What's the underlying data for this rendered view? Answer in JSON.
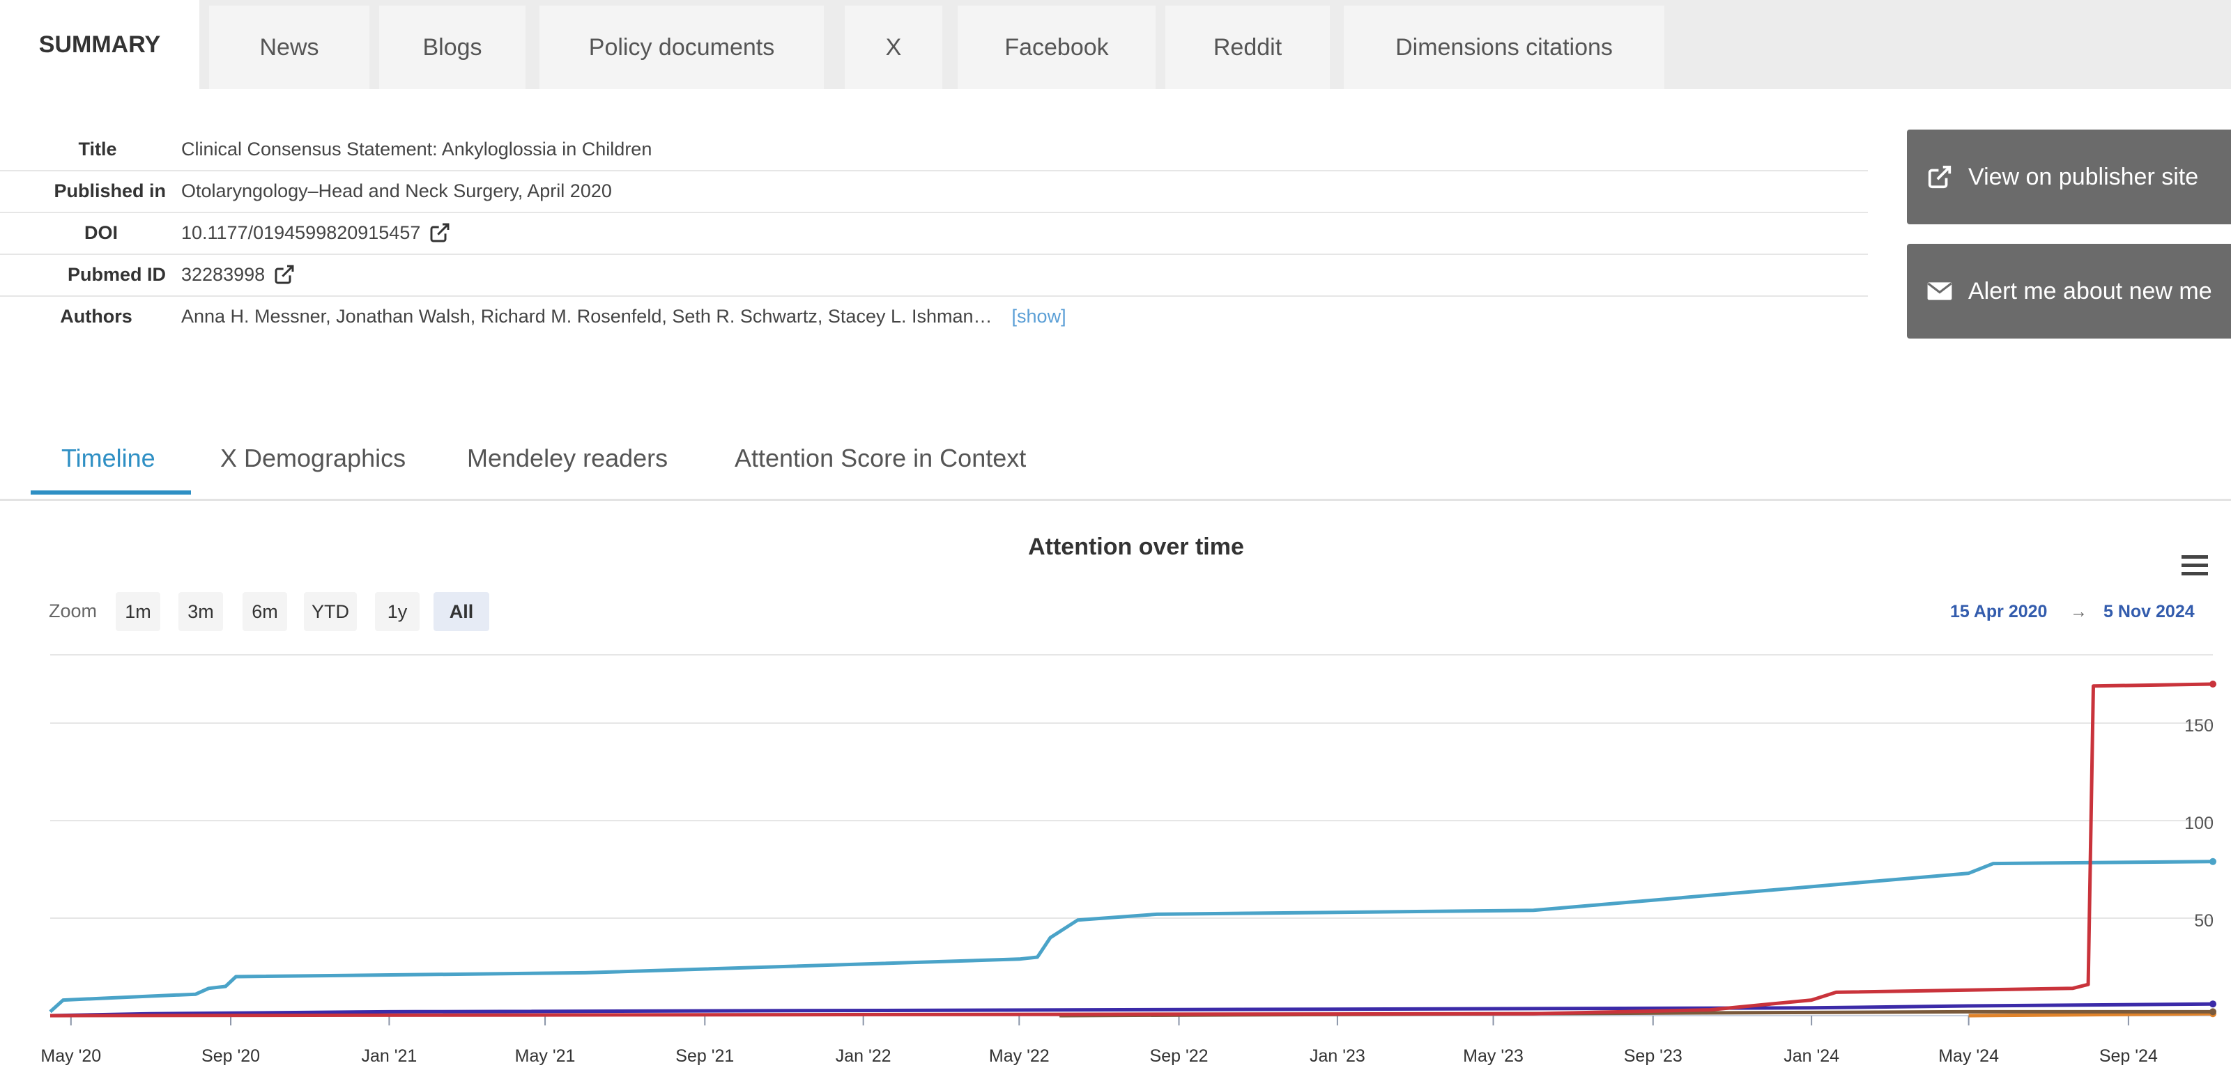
{
  "top_tabs": [
    {
      "label": "SUMMARY",
      "active": true
    },
    {
      "label": "News"
    },
    {
      "label": "Blogs"
    },
    {
      "label": "Policy documents"
    },
    {
      "label": "X"
    },
    {
      "label": "Facebook"
    },
    {
      "label": "Reddit"
    },
    {
      "label": "Dimensions citations"
    }
  ],
  "metadata": {
    "title_label": "Title",
    "title_value": "Clinical Consensus Statement: Ankyloglossia in Children",
    "published_label": "Published in",
    "published_value": "Otolaryngology–Head and Neck Surgery, April 2020",
    "doi_label": "DOI",
    "doi_value": "10.1177/0194599820915457",
    "pubmed_label": "Pubmed ID",
    "pubmed_value": "32283998",
    "authors_label": "Authors",
    "authors_value": "Anna H. Messner, Jonathan Walsh, Richard M. Rosenfeld, Seth R. Schwartz, Stacey L. Ishman…",
    "show_label": "[show]"
  },
  "buttons": {
    "publisher_label": "View on publisher site",
    "alert_label": "Alert me about new me"
  },
  "sub_tabs": [
    {
      "label": "Timeline",
      "active": true
    },
    {
      "label": "X Demographics"
    },
    {
      "label": "Mendeley readers"
    },
    {
      "label": "Attention Score in Context"
    }
  ],
  "chart": {
    "title": "Attention over time",
    "zoom_label": "Zoom",
    "zoom_buttons": [
      "1m",
      "3m",
      "6m",
      "YTD",
      "1y",
      "All"
    ],
    "zoom_active": "All",
    "range_from": "15 Apr 2020",
    "range_arrow": "→",
    "range_to": "5 Nov 2024",
    "accent_color": "#2e8fc4"
  },
  "chart_data": {
    "type": "line",
    "title": "Attention over time",
    "xlabel": "",
    "ylabel": "",
    "x_tick_labels": [
      "May '20",
      "Sep '20",
      "Jan '21",
      "May '21",
      "Sep '21",
      "Jan '22",
      "May '22",
      "Sep '22",
      "Jan '23",
      "May '23",
      "Sep '23",
      "Jan '24",
      "May '24",
      "Sep '24"
    ],
    "y_ticks": [
      50,
      100,
      150
    ],
    "ylim": [
      0,
      185
    ],
    "xlim": [
      "2020-04-15",
      "2024-11-05"
    ],
    "grid": true,
    "series": [
      {
        "color": "#c9333b",
        "points": [
          [
            "2020-04-15",
            0
          ],
          [
            "2023-06-01",
            1
          ],
          [
            "2023-10-15",
            3
          ],
          [
            "2024-01-01",
            8
          ],
          [
            "2024-01-20",
            12
          ],
          [
            "2024-07-20",
            14
          ],
          [
            "2024-08-01",
            16
          ],
          [
            "2024-08-05",
            169
          ],
          [
            "2024-11-05",
            170
          ]
        ]
      },
      {
        "color": "#4aa3c8",
        "points": [
          [
            "2020-04-15",
            2
          ],
          [
            "2020-04-25",
            8
          ],
          [
            "2020-07-01",
            10
          ],
          [
            "2020-08-05",
            11
          ],
          [
            "2020-08-15",
            14
          ],
          [
            "2020-08-28",
            15
          ],
          [
            "2020-09-05",
            20
          ],
          [
            "2021-06-01",
            22
          ],
          [
            "2022-05-01",
            29
          ],
          [
            "2022-05-15",
            30
          ],
          [
            "2022-05-25",
            40
          ],
          [
            "2022-06-15",
            49
          ],
          [
            "2022-08-15",
            52
          ],
          [
            "2023-06-01",
            54
          ],
          [
            "2024-05-01",
            73
          ],
          [
            "2024-05-20",
            78
          ],
          [
            "2024-11-05",
            79
          ]
        ]
      },
      {
        "color": "#3b2aa8",
        "points": [
          [
            "2020-04-15",
            0
          ],
          [
            "2020-07-01",
            1
          ],
          [
            "2021-01-01",
            2
          ],
          [
            "2024-01-01",
            4
          ],
          [
            "2024-05-01",
            5
          ],
          [
            "2024-11-05",
            6
          ]
        ]
      },
      {
        "color": "#7a5a3c",
        "points": [
          [
            "2022-06-01",
            0
          ],
          [
            "2024-05-01",
            2
          ],
          [
            "2024-11-05",
            2
          ]
        ]
      },
      {
        "color": "#e0832b",
        "points": [
          [
            "2024-05-01",
            0
          ],
          [
            "2024-11-05",
            1
          ]
        ]
      }
    ]
  }
}
